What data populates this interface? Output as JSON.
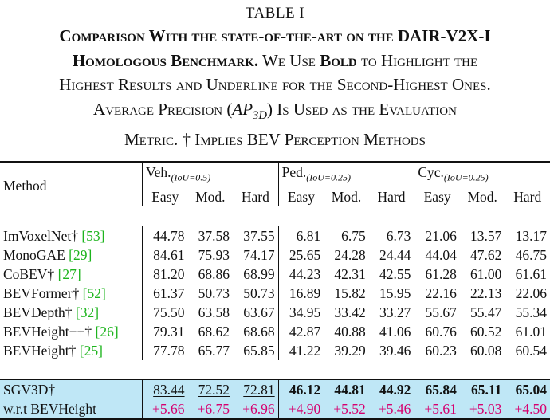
{
  "table_label": "TABLE I",
  "caption": {
    "line1_a": "Comparison With the state-of-the-art on the ",
    "line1_b": "DAIR-V2X-I",
    "line2_a": "Homologous Benchmark.",
    "line2_b": " We Use ",
    "line2_c": "Bold",
    "line2_d": " to Highlight the",
    "line3": "Highest Results and Underline for the Second-Highest Ones.",
    "line4_a": "Average Precision (",
    "line4_ap": "AP",
    "line4_sub": "3D",
    "line4_b": ") Is Used as the Evaluation",
    "line5": "Metric. † Implies BEV Perception Methods"
  },
  "table": {
    "method_header": "Method",
    "groups": [
      {
        "name": "Veh.",
        "iou": "(IoU=0.5)"
      },
      {
        "name": "Ped.",
        "iou": "(IoU=0.25)"
      },
      {
        "name": "Cyc.",
        "iou": "(IoU=0.25)"
      }
    ],
    "subheaders": [
      "Easy",
      "Mod.",
      "Hard",
      "Easy",
      "Mod.",
      "Hard",
      "Easy",
      "Mod.",
      "Hard"
    ],
    "rows": [
      {
        "method": "ImVoxelNet†",
        "ref": "[53]",
        "values": [
          "44.78",
          "37.58",
          "37.55",
          "6.81",
          "6.75",
          "6.73",
          "21.06",
          "13.57",
          "13.17"
        ]
      },
      {
        "method": "MonoGAE",
        "ref": "[29]",
        "values": [
          "84.61",
          "75.93",
          "74.17",
          "25.65",
          "24.28",
          "24.44",
          "44.04",
          "47.62",
          "46.75"
        ]
      },
      {
        "method": "CoBEV†",
        "ref": "[27]",
        "values": [
          "81.20",
          "68.86",
          "68.99",
          "44.23",
          "42.31",
          "42.55",
          "61.28",
          "61.00",
          "61.61"
        ]
      },
      {
        "method": "BEVFormer†",
        "ref": "[52]",
        "values": [
          "61.37",
          "50.73",
          "50.73",
          "16.89",
          "15.82",
          "15.95",
          "22.16",
          "22.13",
          "22.06"
        ]
      },
      {
        "method": "BEVDepth†",
        "ref": "[32]",
        "values": [
          "75.50",
          "63.58",
          "63.67",
          "34.95",
          "33.42",
          "33.27",
          "55.67",
          "55.47",
          "55.34"
        ]
      },
      {
        "method": "BEVHeight++†",
        "ref": "[26]",
        "values": [
          "79.31",
          "68.62",
          "68.68",
          "42.87",
          "40.88",
          "41.06",
          "60.76",
          "60.52",
          "61.01"
        ]
      },
      {
        "method": "BEVHeight†",
        "ref": "[25]",
        "values": [
          "77.78",
          "65.77",
          "65.85",
          "41.22",
          "39.29",
          "39.46",
          "60.23",
          "60.08",
          "60.54"
        ]
      }
    ],
    "ours": {
      "method": "SGV3D†",
      "values": [
        "83.44",
        "72.52",
        "72.81",
        "46.12",
        "44.81",
        "44.92",
        "65.84",
        "65.11",
        "65.04"
      ]
    },
    "delta": {
      "method": "w.r.t BEVHeight",
      "values": [
        "+5.66",
        "+6.75",
        "+6.96",
        "+4.90",
        "+5.52",
        "+5.46",
        "+5.61",
        "+5.03",
        "+4.50"
      ]
    }
  }
}
